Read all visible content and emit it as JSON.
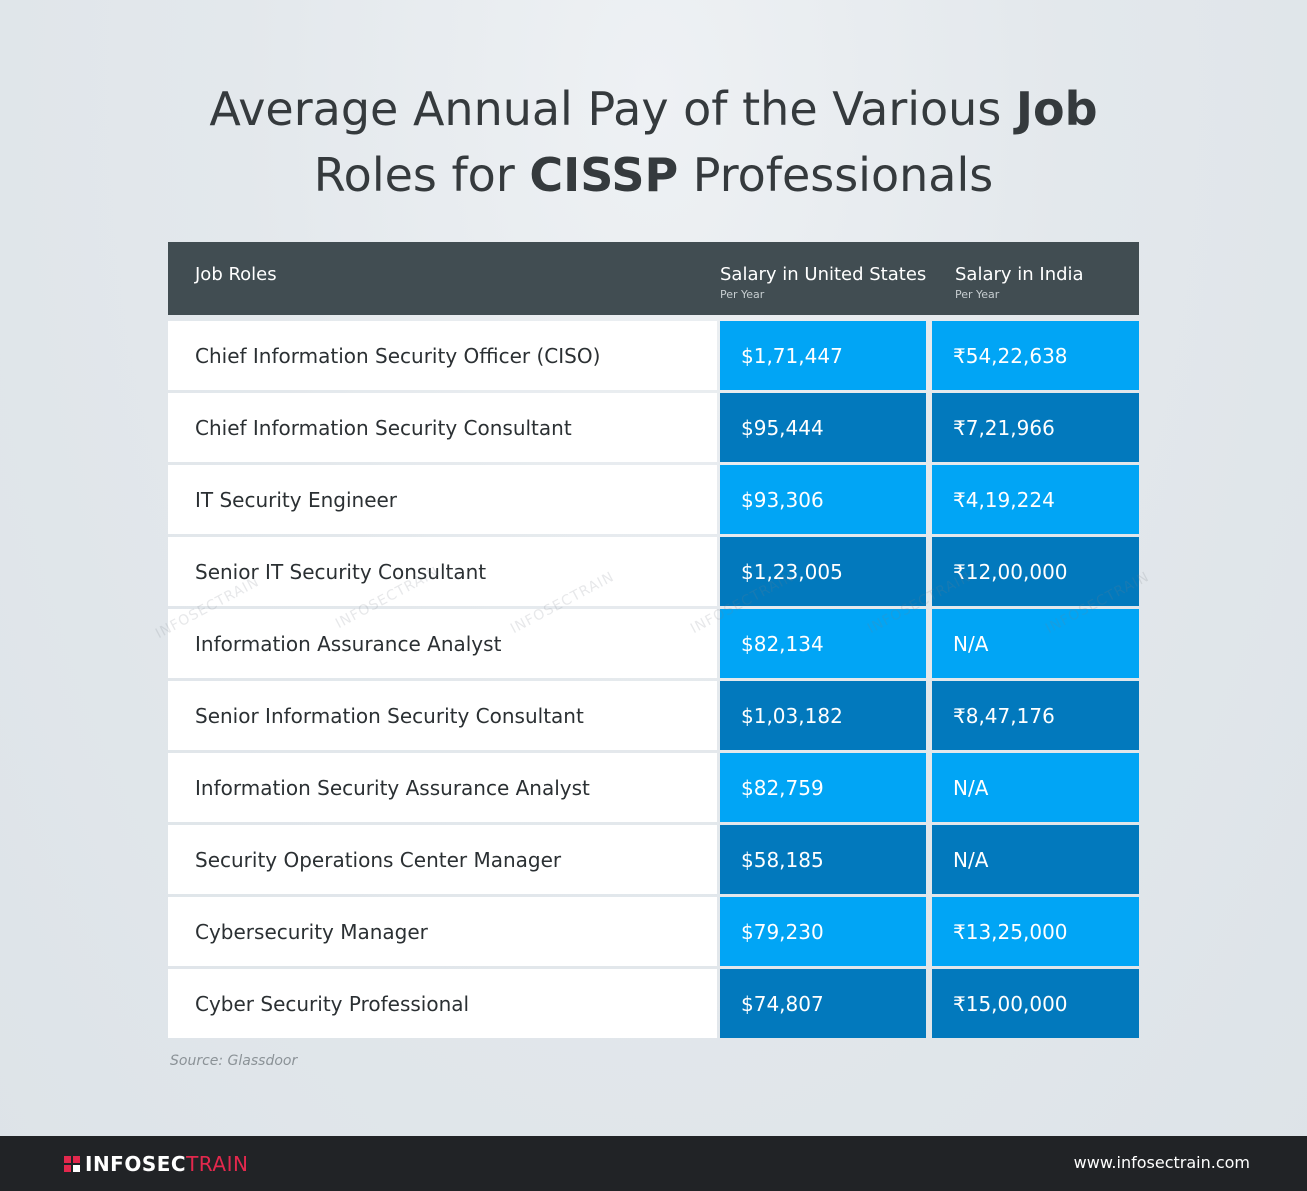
{
  "title": {
    "line1_part1": "Average Annual Pay of the Various ",
    "line1_bold": "Job",
    "line2_part1": "Roles for ",
    "line2_bold": "CISSP",
    "line2_part2": " Professionals"
  },
  "table": {
    "headers": {
      "role": "Job Roles",
      "us": "Salary in United States",
      "us_sub": "Per Year",
      "india": "Salary in India",
      "india_sub": "Per Year"
    },
    "rows": [
      {
        "role": "Chief Information Security Officer (CISO)",
        "us": "$1,71,447",
        "india": "₹54,22,638"
      },
      {
        "role": "Chief Information Security Consultant",
        "us": "$95,444",
        "india": "₹7,21,966"
      },
      {
        "role": "IT Security Engineer",
        "us": "$93,306",
        "india": "₹4,19,224"
      },
      {
        "role": "Senior IT Security Consultant",
        "us": "$1,23,005",
        "india": "₹12,00,000"
      },
      {
        "role": "Information Assurance Analyst",
        "us": "$82,134",
        "india": "N/A"
      },
      {
        "role": "Senior Information Security Consultant",
        "us": "$1,03,182",
        "india": "₹8,47,176"
      },
      {
        "role": "Information Security Assurance Analyst",
        "us": "$82,759",
        "india": "N/A"
      },
      {
        "role": "Security Operations Center Manager",
        "us": "$58,185",
        "india": "N/A"
      },
      {
        "role": "Cybersecurity Manager",
        "us": "$79,230",
        "india": "₹13,25,000"
      },
      {
        "role": "Cyber Security Professional",
        "us": "$74,807",
        "india": "₹15,00,000"
      }
    ]
  },
  "source": "Source: Glassdoor",
  "watermark": "INFOSECTRAIN",
  "footer": {
    "brand_a": "INFOSEC",
    "brand_b": "TRAIN",
    "website": "www.infosectrain.com"
  },
  "colors": {
    "header_bg": "#414d52",
    "cell_light": "#01a5f5",
    "cell_dark": "#0279bd",
    "brand_red": "#e3284d",
    "footer_bg": "#212326"
  }
}
